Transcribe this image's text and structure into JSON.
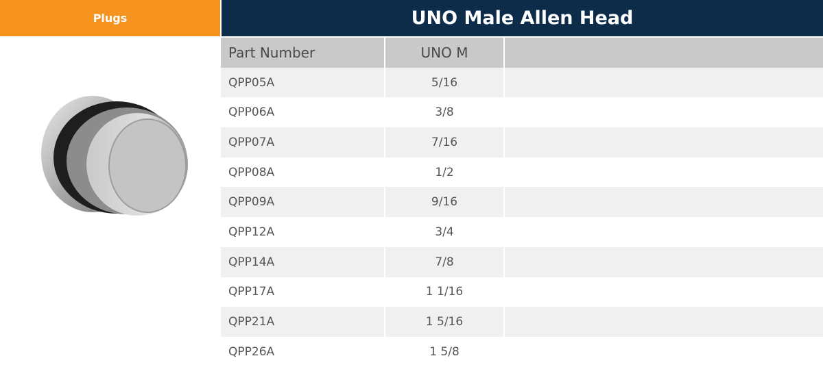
{
  "header": {
    "category": "Plugs",
    "title": "UNO Male Allen Head"
  },
  "table": {
    "columns": [
      "Part Number",
      "UNO M"
    ],
    "rows": [
      [
        "QPP05A",
        "5/16"
      ],
      [
        "QPP06A",
        "3/8"
      ],
      [
        "QPP07A",
        "7/16"
      ],
      [
        "QPP08A",
        "1/2"
      ],
      [
        "QPP09A",
        "9/16"
      ],
      [
        "QPP12A",
        "3/4"
      ],
      [
        "QPP14A",
        "7/8"
      ],
      [
        "QPP17A",
        "1 1/16"
      ],
      [
        "QPP21A",
        "1 5/16"
      ],
      [
        "QPP26A",
        "1 5/8"
      ]
    ]
  }
}
